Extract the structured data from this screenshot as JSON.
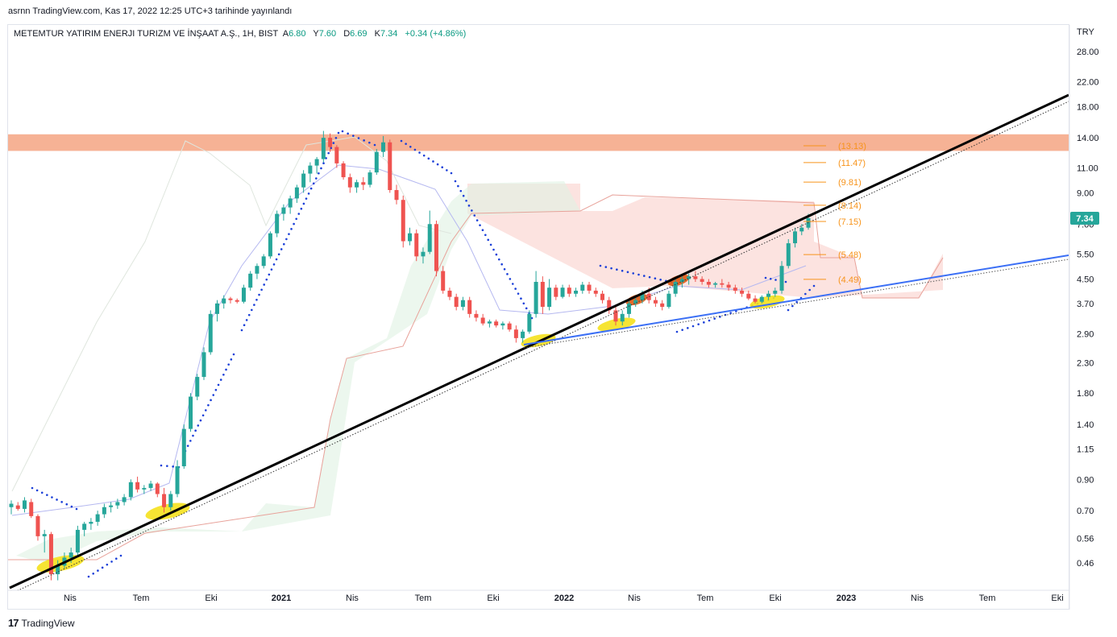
{
  "header": {
    "text": "asrnn TradingView.com, Kas 17, 2022 12:25 UTC+3 tarihinde yayınlandı"
  },
  "legend": {
    "symbol": "METEMTUR YATIRIM ENERJI TURIZM VE İNŞAAT A.Ş., 1H, BIST",
    "open_key": "A",
    "open": "6.80",
    "high_key": "Y",
    "high": "7.60",
    "low_key": "D",
    "low": "6.69",
    "close_key": "K",
    "close": "7.34",
    "change": "+0.34 (+4.86%)"
  },
  "currency": "TRY",
  "last_price": "7.34",
  "footer": {
    "logo": "17",
    "brand": "TradingView"
  },
  "colors": {
    "up": "#26a69a",
    "down": "#ef5350",
    "trend_black": "#000000",
    "trend_blue": "#3b6ff5",
    "resistance_zone": "#f4a582",
    "cloud_red": "#fbd9d5",
    "cloud_green": "#dff1e3",
    "sar": "#1a3fd8",
    "highlight_yellow": "#f5e11d",
    "highlight_orange": "#e05a14",
    "fib": "#f7931a"
  },
  "chart_data": {
    "type": "candlestick",
    "scale": "log",
    "y_ticks": [
      "28.00",
      "22.00",
      "18.00",
      "14.00",
      "11.00",
      "9.00",
      "7.00",
      "5.50",
      "4.50",
      "3.70",
      "2.90",
      "2.30",
      "1.80",
      "1.40",
      "1.15",
      "0.90",
      "0.70",
      "0.56",
      "0.46"
    ],
    "x_ticks": [
      "Nis",
      "Tem",
      "Eki",
      "2021",
      "Nis",
      "Tem",
      "Eki",
      "2022",
      "Nis",
      "Tem",
      "Eki",
      "2023",
      "Nis",
      "Tem",
      "Eki"
    ],
    "fib_levels": [
      "(13.13)",
      "(11.47)",
      "(9.81)",
      "(8.14)",
      "(7.15)",
      "(5.48)",
      "(4.49)"
    ],
    "resistance_zone": [
      12.6,
      14.4
    ],
    "candles": [
      [
        0.0,
        0.72,
        0.76,
        0.68,
        0.74
      ],
      [
        0.3,
        0.73,
        0.75,
        0.7,
        0.71
      ],
      [
        0.6,
        0.71,
        0.78,
        0.69,
        0.76
      ],
      [
        0.9,
        0.75,
        0.77,
        0.66,
        0.67
      ],
      [
        1.2,
        0.67,
        0.68,
        0.55,
        0.57
      ],
      [
        1.5,
        0.57,
        0.6,
        0.5,
        0.58
      ],
      [
        1.8,
        0.58,
        0.59,
        0.4,
        0.42
      ],
      [
        2.1,
        0.42,
        0.47,
        0.4,
        0.45
      ],
      [
        2.4,
        0.45,
        0.5,
        0.44,
        0.48
      ],
      [
        2.7,
        0.48,
        0.52,
        0.46,
        0.5
      ],
      [
        3.0,
        0.5,
        0.62,
        0.49,
        0.6
      ],
      [
        3.3,
        0.6,
        0.64,
        0.57,
        0.63
      ],
      [
        3.6,
        0.63,
        0.66,
        0.6,
        0.64
      ],
      [
        3.9,
        0.64,
        0.7,
        0.62,
        0.68
      ],
      [
        4.2,
        0.68,
        0.74,
        0.66,
        0.72
      ],
      [
        4.5,
        0.72,
        0.75,
        0.69,
        0.73
      ],
      [
        4.8,
        0.73,
        0.77,
        0.71,
        0.75
      ],
      [
        5.1,
        0.75,
        0.8,
        0.73,
        0.78
      ],
      [
        5.4,
        0.78,
        0.9,
        0.76,
        0.88
      ],
      [
        5.7,
        0.88,
        0.92,
        0.81,
        0.83
      ],
      [
        6.0,
        0.83,
        0.86,
        0.8,
        0.84
      ],
      [
        6.3,
        0.84,
        0.89,
        0.82,
        0.87
      ],
      [
        6.6,
        0.87,
        0.88,
        0.78,
        0.8
      ],
      [
        6.9,
        0.8,
        0.84,
        0.69,
        0.72
      ],
      [
        7.2,
        0.72,
        0.82,
        0.7,
        0.8
      ],
      [
        7.5,
        0.8,
        1.05,
        0.78,
        1.0
      ],
      [
        7.8,
        1.0,
        1.4,
        0.98,
        1.35
      ],
      [
        8.1,
        1.35,
        1.8,
        1.32,
        1.75
      ],
      [
        8.4,
        1.75,
        2.1,
        1.7,
        2.05
      ],
      [
        8.7,
        2.05,
        2.6,
        2.0,
        2.5
      ],
      [
        9.0,
        2.5,
        3.5,
        2.45,
        3.4
      ],
      [
        9.3,
        3.4,
        3.8,
        3.2,
        3.7
      ],
      [
        9.6,
        3.7,
        3.95,
        3.55,
        3.85
      ],
      [
        9.9,
        3.85,
        3.9,
        3.7,
        3.8
      ],
      [
        10.2,
        3.8,
        3.85,
        3.7,
        3.75
      ],
      [
        10.5,
        3.75,
        4.3,
        3.7,
        4.2
      ],
      [
        10.8,
        4.2,
        4.8,
        4.1,
        4.7
      ],
      [
        11.1,
        4.7,
        5.1,
        4.5,
        5.0
      ],
      [
        11.4,
        5.0,
        5.5,
        4.9,
        5.4
      ],
      [
        11.7,
        5.4,
        6.6,
        5.3,
        6.5
      ],
      [
        12.0,
        6.5,
        7.8,
        6.3,
        7.6
      ],
      [
        12.3,
        7.6,
        8.2,
        7.2,
        8.0
      ],
      [
        12.6,
        8.0,
        8.8,
        7.6,
        8.6
      ],
      [
        12.9,
        8.6,
        9.6,
        8.3,
        9.4
      ],
      [
        13.2,
        9.4,
        10.8,
        9.0,
        10.5
      ],
      [
        13.5,
        10.5,
        11.5,
        9.8,
        11.2
      ],
      [
        13.8,
        11.2,
        12.0,
        10.5,
        11.8
      ],
      [
        14.1,
        11.8,
        14.8,
        11.5,
        14.0
      ],
      [
        14.4,
        14.0,
        14.5,
        12.5,
        13.0
      ],
      [
        14.7,
        13.0,
        13.2,
        11.0,
        11.4
      ],
      [
        15.0,
        11.4,
        11.6,
        10.0,
        10.2
      ],
      [
        15.3,
        10.2,
        10.5,
        9.0,
        9.4
      ],
      [
        15.6,
        9.4,
        10.0,
        9.0,
        9.8
      ],
      [
        15.9,
        9.8,
        10.2,
        9.2,
        9.6
      ],
      [
        16.2,
        9.6,
        10.8,
        9.4,
        10.6
      ],
      [
        16.5,
        10.6,
        12.8,
        10.4,
        12.5
      ],
      [
        16.8,
        12.5,
        14.2,
        12.0,
        13.5
      ],
      [
        17.1,
        13.5,
        13.8,
        9.0,
        9.2
      ],
      [
        17.4,
        9.2,
        9.6,
        8.2,
        8.5
      ],
      [
        17.7,
        8.5,
        8.8,
        5.8,
        6.1
      ],
      [
        18.0,
        6.1,
        6.8,
        5.9,
        6.5
      ],
      [
        18.3,
        6.5,
        6.7,
        5.2,
        5.4
      ],
      [
        18.6,
        5.4,
        5.8,
        5.1,
        5.6
      ],
      [
        18.9,
        5.6,
        7.8,
        5.5,
        7.0
      ],
      [
        19.2,
        7.0,
        7.2,
        4.6,
        4.8
      ],
      [
        19.5,
        4.8,
        5.0,
        4.0,
        4.1
      ],
      [
        19.8,
        4.1,
        4.2,
        3.8,
        3.9
      ],
      [
        20.1,
        3.9,
        4.0,
        3.5,
        3.6
      ],
      [
        20.4,
        3.6,
        3.9,
        3.5,
        3.8
      ],
      [
        20.7,
        3.8,
        3.9,
        3.3,
        3.4
      ],
      [
        21.0,
        3.4,
        3.5,
        3.2,
        3.3
      ],
      [
        21.3,
        3.3,
        3.4,
        3.1,
        3.15
      ],
      [
        21.6,
        3.15,
        3.25,
        3.05,
        3.2
      ],
      [
        21.9,
        3.2,
        3.25,
        3.05,
        3.1
      ],
      [
        22.2,
        3.1,
        3.2,
        3.0,
        3.15
      ],
      [
        22.5,
        3.15,
        3.2,
        2.95,
        3.0
      ],
      [
        22.8,
        3.0,
        3.1,
        2.7,
        2.8
      ],
      [
        23.1,
        2.8,
        3.0,
        2.7,
        2.95
      ],
      [
        23.4,
        2.95,
        3.5,
        2.9,
        3.4
      ],
      [
        23.7,
        3.4,
        4.8,
        3.3,
        4.4
      ],
      [
        24.0,
        4.4,
        4.6,
        3.4,
        3.6
      ],
      [
        24.3,
        3.6,
        4.5,
        3.5,
        4.2
      ],
      [
        24.6,
        4.2,
        4.3,
        3.8,
        3.9
      ],
      [
        24.9,
        3.9,
        4.3,
        3.85,
        4.2
      ],
      [
        25.2,
        4.2,
        4.3,
        3.9,
        4.0
      ],
      [
        25.5,
        4.0,
        4.2,
        3.9,
        4.1
      ],
      [
        25.8,
        4.1,
        4.4,
        4.0,
        4.3
      ],
      [
        26.1,
        4.3,
        4.4,
        4.0,
        4.1
      ],
      [
        26.4,
        4.1,
        4.2,
        3.9,
        4.0
      ],
      [
        26.7,
        4.0,
        4.1,
        3.7,
        3.8
      ],
      [
        27.0,
        3.8,
        3.9,
        3.4,
        3.5
      ],
      [
        27.3,
        3.5,
        3.6,
        3.1,
        3.2
      ],
      [
        27.6,
        3.2,
        3.5,
        3.1,
        3.4
      ],
      [
        27.9,
        3.4,
        3.8,
        3.3,
        3.7
      ],
      [
        28.2,
        3.7,
        3.9,
        3.6,
        3.8
      ],
      [
        28.5,
        3.8,
        4.1,
        3.7,
        4.0
      ],
      [
        28.8,
        4.0,
        4.2,
        3.7,
        3.8
      ],
      [
        29.1,
        3.8,
        3.9,
        3.6,
        3.7
      ],
      [
        29.4,
        3.7,
        3.8,
        3.5,
        3.6
      ],
      [
        29.7,
        3.6,
        4.1,
        3.55,
        4.0
      ],
      [
        30.0,
        4.0,
        4.5,
        3.9,
        4.4
      ],
      [
        30.3,
        4.4,
        4.6,
        4.2,
        4.5
      ],
      [
        30.6,
        4.5,
        4.7,
        4.3,
        4.6
      ],
      [
        30.9,
        4.6,
        4.8,
        4.4,
        4.5
      ],
      [
        31.2,
        4.5,
        4.6,
        4.3,
        4.4
      ],
      [
        31.5,
        4.4,
        4.5,
        4.2,
        4.3
      ],
      [
        31.8,
        4.3,
        4.4,
        4.2,
        4.35
      ],
      [
        32.1,
        4.35,
        4.5,
        4.2,
        4.3
      ],
      [
        32.4,
        4.3,
        4.4,
        4.1,
        4.2
      ],
      [
        32.7,
        4.2,
        4.3,
        4.0,
        4.1
      ],
      [
        33.0,
        4.1,
        4.2,
        3.9,
        4.0
      ],
      [
        33.3,
        4.0,
        4.1,
        3.8,
        3.85
      ],
      [
        33.6,
        3.85,
        3.95,
        3.7,
        3.75
      ],
      [
        33.9,
        3.75,
        3.95,
        3.7,
        3.9
      ],
      [
        34.2,
        3.9,
        4.1,
        3.8,
        4.0
      ],
      [
        34.5,
        4.0,
        4.2,
        3.9,
        4.1
      ],
      [
        34.8,
        4.1,
        5.2,
        4.0,
        5.0
      ],
      [
        35.1,
        5.0,
        6.2,
        4.9,
        6.0
      ],
      [
        35.4,
        6.0,
        6.8,
        5.8,
        6.6
      ],
      [
        35.7,
        6.6,
        7.0,
        6.4,
        6.8
      ],
      [
        36.0,
        6.8,
        7.6,
        6.69,
        7.34
      ]
    ]
  }
}
